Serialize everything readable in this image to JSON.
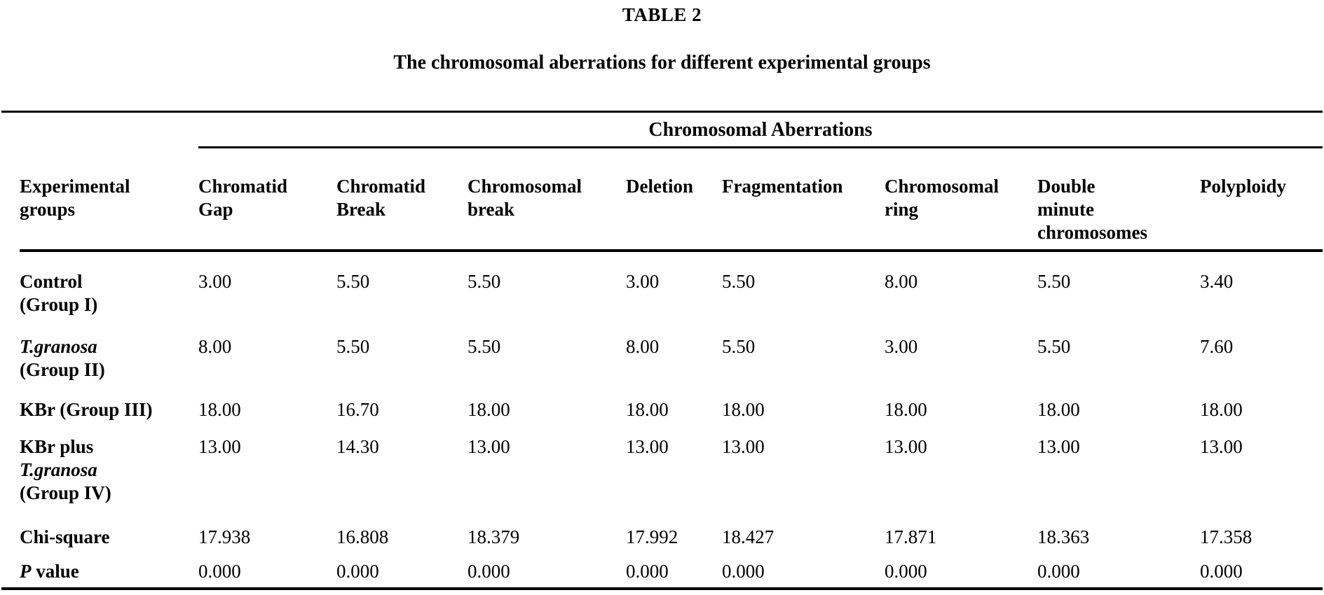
{
  "page": {
    "title": "TABLE 2",
    "subtitle": "The chromosomal aberrations for different experimental groups"
  },
  "colors": {
    "background": "#ffffff",
    "text": "#000000",
    "rule": "#000000"
  },
  "table": {
    "span_header": "Chromosomal Aberrations",
    "row_header_lines": [
      "Experimental",
      "groups"
    ],
    "columns": [
      {
        "id": "chromatid-gap",
        "lines": [
          "Chromatid",
          "Gap"
        ]
      },
      {
        "id": "chromatid-break",
        "lines": [
          "Chromatid",
          "Break"
        ]
      },
      {
        "id": "chromosomal-break",
        "lines": [
          "Chromosomal",
          "break"
        ]
      },
      {
        "id": "deletion",
        "lines": [
          "Deletion"
        ]
      },
      {
        "id": "fragmentation",
        "lines": [
          "Fragmentation"
        ]
      },
      {
        "id": "chromosomal-ring",
        "lines": [
          "Chromosomal",
          "ring"
        ]
      },
      {
        "id": "double-minute-chromosomes",
        "lines": [
          "Double",
          "minute",
          "chromosomes"
        ]
      },
      {
        "id": "polyploidy",
        "lines": [
          "Polyploidy"
        ]
      }
    ],
    "rows": [
      {
        "label": [
          [
            {
              "text": "Control"
            }
          ],
          [
            {
              "text": "(Group I)"
            }
          ]
        ],
        "values": [
          "3.00",
          "5.50",
          "5.50",
          "3.00",
          "5.50",
          "8.00",
          "5.50",
          "3.40"
        ]
      },
      {
        "label": [
          [
            {
              "text": "T.granosa",
              "italic": true
            }
          ],
          [
            {
              "text": "(Group II)"
            }
          ]
        ],
        "values": [
          "8.00",
          "5.50",
          "5.50",
          "8.00",
          "5.50",
          "3.00",
          "5.50",
          "7.60"
        ]
      },
      {
        "label": [
          [
            {
              "text": "KBr (Group III)"
            }
          ]
        ],
        "values": [
          "18.00",
          "16.70",
          "18.00",
          "18.00",
          "18.00",
          "18.00",
          "18.00",
          "18.00"
        ]
      },
      {
        "label": [
          [
            {
              "text": "KBr plus"
            }
          ],
          [
            {
              "text": "T.granosa",
              "italic": true
            }
          ],
          [
            {
              "text": "(Group IV)"
            }
          ]
        ],
        "values": [
          "13.00",
          "14.30",
          "13.00",
          "13.00",
          "13.00",
          "13.00",
          "13.00",
          "13.00"
        ]
      },
      {
        "label": [
          [
            {
              "text": "Chi-square"
            }
          ]
        ],
        "values": [
          "17.938",
          "16.808",
          "18.379",
          "17.992",
          "18.427",
          "17.871",
          "18.363",
          "17.358"
        ]
      },
      {
        "label": [
          [
            {
              "text": "P",
              "italic": true
            },
            {
              "text": " value"
            }
          ]
        ],
        "values": [
          "0.000",
          "0.000",
          "0.000",
          "0.000",
          "0.000",
          "0.000",
          "0.000",
          "0.000"
        ]
      }
    ]
  }
}
